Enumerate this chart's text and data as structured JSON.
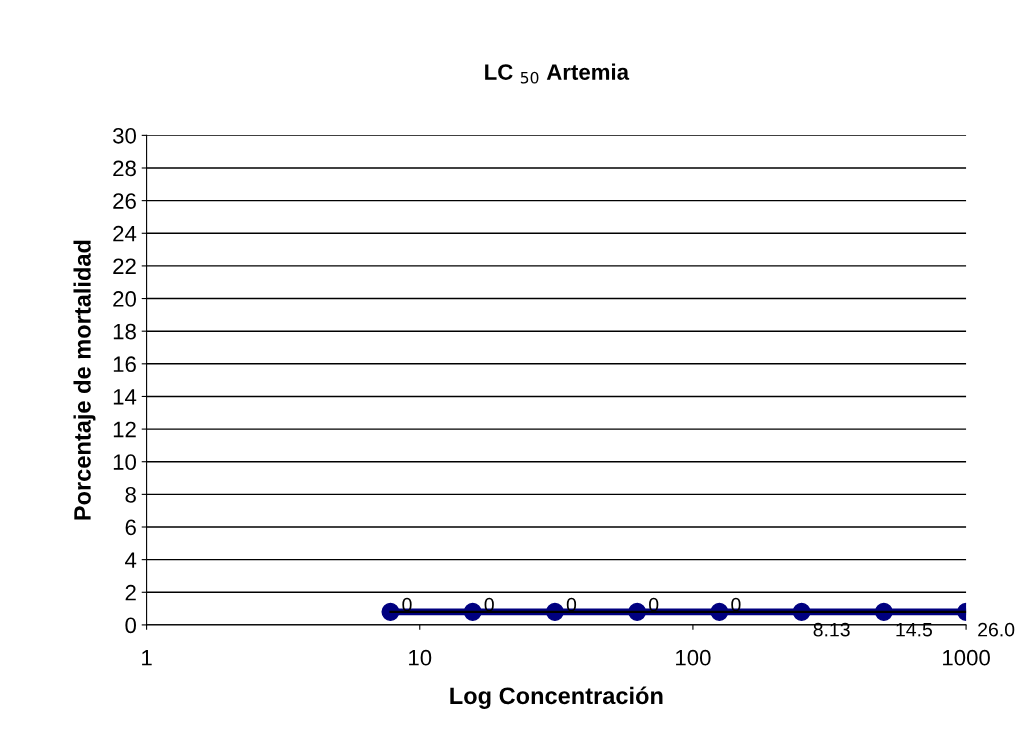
{
  "chart_data": {
    "type": "line",
    "title": "LC $_{50}$ Artemia",
    "xlabel": "Log Concentración",
    "ylabel": "Porcentaje de mortalidad",
    "log": "x",
    "xlim": [
      1,
      1000
    ],
    "xticks": [
      1,
      10,
      100,
      1000
    ],
    "ylim": [
      0,
      30
    ],
    "yticks": [
      0,
      2,
      4,
      6,
      8,
      10,
      12,
      14,
      16,
      18,
      20,
      22,
      24,
      26,
      28,
      30
    ],
    "grid": "y",
    "legend": false,
    "series": [
      {
        "color": "#000080",
        "marker": "circle",
        "x": [
          7.8125,
          15.625,
          31.25,
          62.5,
          125,
          250,
          500,
          1000
        ],
        "values": [
          0.8,
          0.8,
          0.8,
          0.8,
          0.8,
          0.8,
          0.8,
          0.8
        ]
      },
      {
        "color": "#000000",
        "x": [
          7.8125,
          1000
        ],
        "values": [
          0.8,
          0.8
        ]
      }
    ],
    "annotations": [
      {
        "text": "0",
        "x": 7.8125,
        "y": 0.8
      },
      {
        "text": "0",
        "x": 15.625,
        "y": 0.8
      },
      {
        "text": "0",
        "x": 31.25,
        "y": 0.8
      },
      {
        "text": "0",
        "x": 62.5,
        "y": 0.8
      },
      {
        "text": "0",
        "x": 125,
        "y": 0.8
      },
      {
        "text": "8.13",
        "x": 250,
        "y": 0.8
      },
      {
        "text": "14.5",
        "x": 500,
        "y": 0.8
      },
      {
        "text": "26.0",
        "x": 1000,
        "y": 0.8
      }
    ]
  }
}
